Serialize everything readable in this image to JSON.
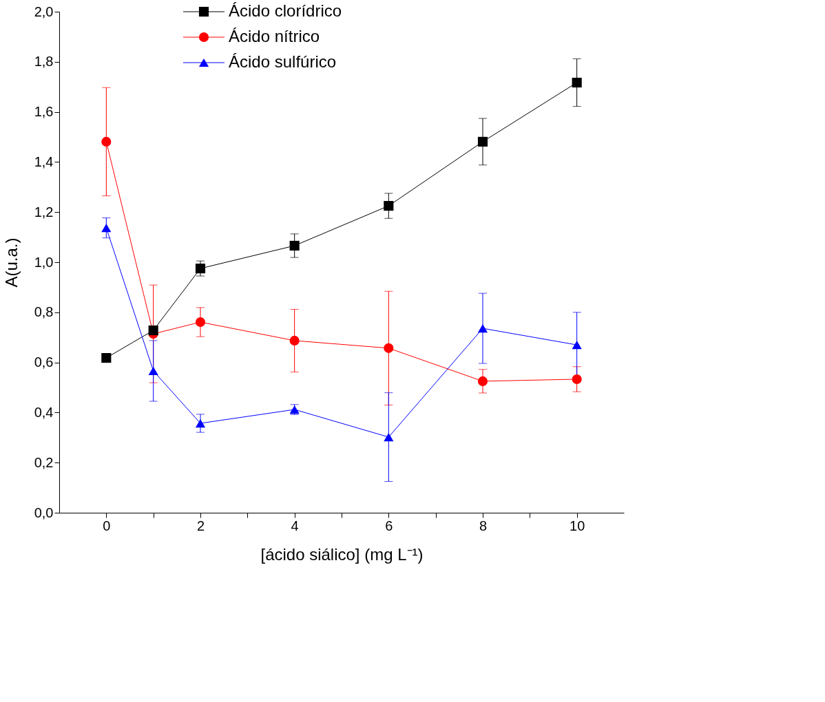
{
  "chart_data": {
    "type": "line",
    "xlabel": "[ácido siálico]  (mg L⁻¹)",
    "ylabel": "A(u.a.)",
    "x": [
      0,
      1,
      2,
      4,
      6,
      8,
      10
    ],
    "series": [
      {
        "name": "Ácido clorídrico",
        "color": "#000000",
        "marker": "square",
        "values": [
          0.618,
          0.728,
          0.975,
          1.066,
          1.225,
          1.481,
          1.717
        ],
        "errors": [
          null,
          null,
          0.03,
          0.047,
          0.05,
          0.093,
          0.095
        ]
      },
      {
        "name": "Ácido nítrico",
        "color": "#ff0000",
        "marker": "circle",
        "values": [
          1.481,
          0.714,
          0.761,
          0.687,
          0.657,
          0.525,
          0.533
        ],
        "errors": [
          0.216,
          0.195,
          0.058,
          0.125,
          0.227,
          0.047,
          0.05
        ]
      },
      {
        "name": "Ácido sulfúrico",
        "color": "#0000ff",
        "marker": "triangle",
        "values": [
          1.137,
          0.566,
          0.357,
          0.412,
          0.302,
          0.736,
          0.67
        ],
        "errors": [
          0.04,
          0.121,
          0.036,
          0.02,
          0.177,
          0.14,
          0.13
        ]
      }
    ],
    "xlim": [
      -1,
      11
    ],
    "xticks": [
      0,
      {
        "value": 1,
        "label": null
      },
      2,
      {
        "value": 3,
        "label": null
      },
      4,
      {
        "value": 5,
        "label": null
      },
      6,
      {
        "value": 7,
        "label": null
      },
      8,
      {
        "value": 9,
        "label": null
      },
      10
    ],
    "ylim": [
      0,
      2
    ],
    "yticks": [
      {
        "value": 0,
        "label": "0,0"
      },
      {
        "value": 0.2,
        "label": "0,2"
      },
      {
        "value": 0.4,
        "label": "0,4"
      },
      {
        "value": 0.6,
        "label": "0,6"
      },
      {
        "value": 0.8,
        "label": "0,8"
      },
      {
        "value": 1.0,
        "label": "1,0"
      },
      {
        "value": 1.2,
        "label": "1,2"
      },
      {
        "value": 1.4,
        "label": "1,4"
      },
      {
        "value": 1.6,
        "label": "1,6"
      },
      {
        "value": 1.8,
        "label": "1,8"
      },
      {
        "value": 2.0,
        "label": "2,0"
      }
    ],
    "grid": false,
    "legend": "top left",
    "line_style": "solid"
  }
}
